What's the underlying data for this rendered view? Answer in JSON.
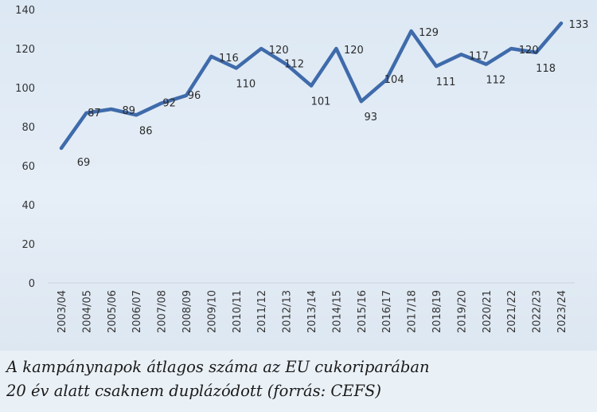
{
  "chart_data": {
    "type": "line",
    "categories": [
      "2003/04",
      "2004/05",
      "2005/06",
      "2006/07",
      "2007/08",
      "2008/09",
      "2009/10",
      "2010/11",
      "2011/12",
      "2012/13",
      "2013/14",
      "2014/15",
      "2015/16",
      "2016/17",
      "2017/18",
      "2018/19",
      "2019/20",
      "2020/21",
      "2021/22",
      "2022/23",
      "2023/24"
    ],
    "series": [
      {
        "values": [
          69,
          87,
          89,
          86,
          92,
          96,
          116,
          110,
          120,
          112,
          101,
          120,
          93,
          104,
          129,
          111,
          117,
          112,
          120,
          118,
          133
        ]
      }
    ],
    "data_labels": [
      "69",
      "87",
      "89",
      "86",
      "92",
      "96",
      "116",
      "110",
      "120",
      "112",
      "101",
      "120",
      "93",
      "104",
      "129",
      "111",
      "117",
      "112",
      "120",
      "118",
      "133"
    ],
    "ylim": [
      0,
      140
    ],
    "yticks": [
      0,
      20,
      40,
      60,
      80,
      100,
      120,
      140
    ],
    "grid": false,
    "line_color": "#3f6bab"
  },
  "caption": {
    "line1": "A kampánynapok átlagos száma az EU cukoriparában",
    "line2": "20 év alatt csaknem duplázódott (forrás: CEFS)"
  }
}
